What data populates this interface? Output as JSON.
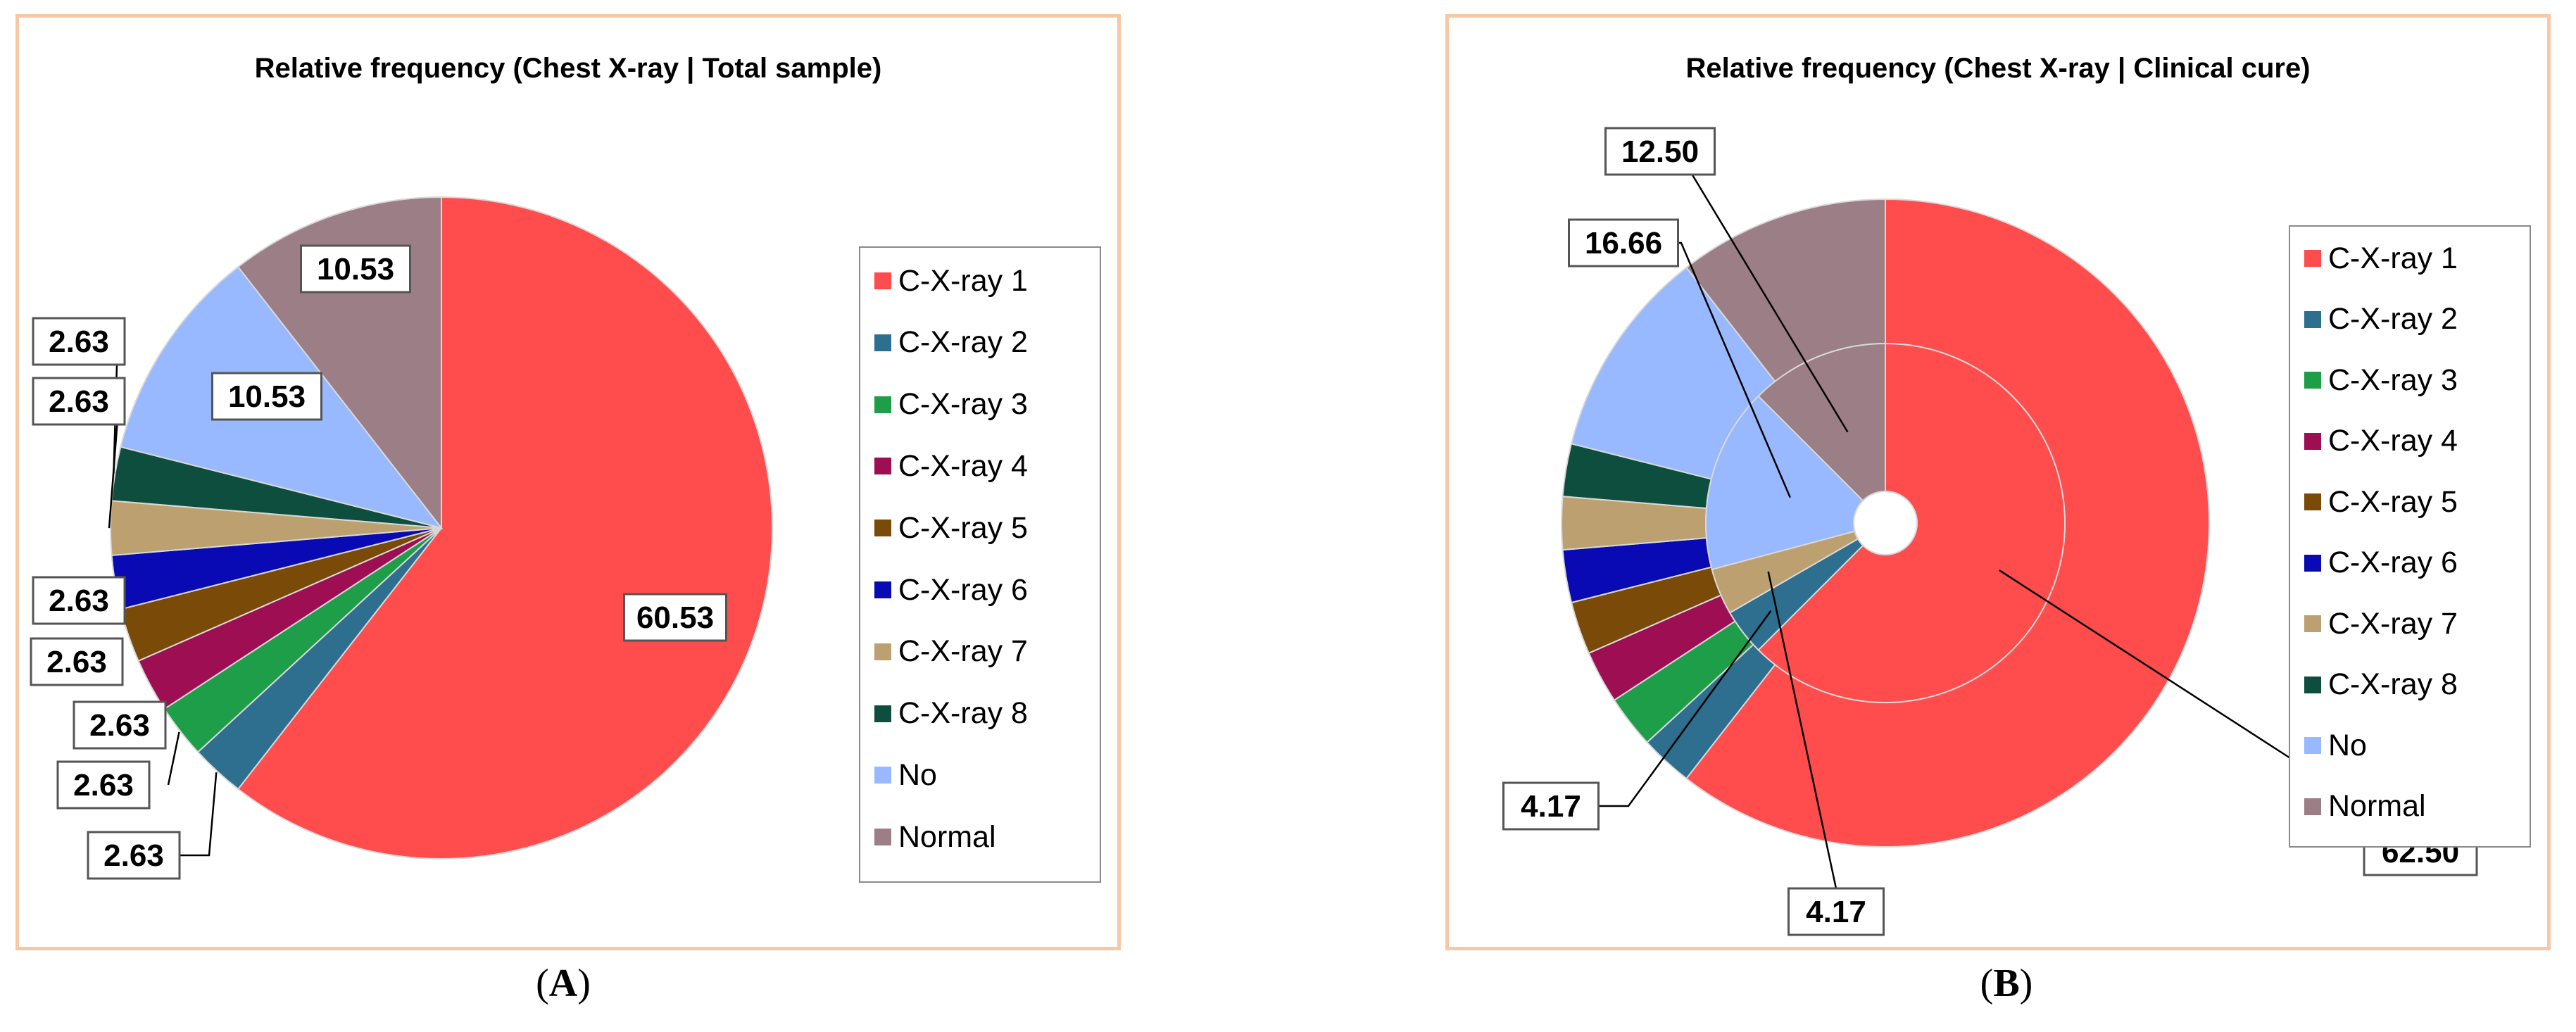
{
  "chart_data": [
    {
      "type": "pie",
      "id": "A",
      "title": "Relative frequency (Chest X-ray |  Total sample)",
      "legend_position": "right",
      "categories": [
        "C-X-ray 1",
        "C-X-ray 2",
        "C-X-ray 3",
        "C-X-ray 4",
        "C-X-ray 5",
        "C-X-ray 6",
        "C-X-ray 7",
        "C-X-ray 8",
        "No",
        "Normal"
      ],
      "colors": [
        "#FF4C4C",
        "#2E6E8E",
        "#1E9E48",
        "#9E0E52",
        "#7A4A08",
        "#0A0AB4",
        "#BDA070",
        "#0E4E3E",
        "#98B8FF",
        "#9C7E86"
      ],
      "values": [
        60.53,
        2.63,
        2.63,
        2.63,
        2.63,
        2.63,
        2.63,
        2.63,
        10.53,
        10.53
      ],
      "data_labels": [
        "60.53",
        "2.63",
        "2.63",
        "2.63",
        "2.63",
        "2.63",
        "2.63",
        "2.63",
        "10.53",
        "10.53"
      ]
    },
    {
      "type": "pie",
      "id": "B",
      "title": "Relative frequency (Chest X-ray | Clinical cure)",
      "legend_position": "right",
      "categories": [
        "C-X-ray 1",
        "C-X-ray 2",
        "C-X-ray 3",
        "C-X-ray 4",
        "C-X-ray 5",
        "C-X-ray 6",
        "C-X-ray 7",
        "C-X-ray 8",
        "No",
        "Normal"
      ],
      "colors": [
        "#FF4C4C",
        "#2E6E8E",
        "#1E9E48",
        "#9E0E52",
        "#7A4A08",
        "#0A0AB4",
        "#BDA070",
        "#0E4E3E",
        "#98B8FF",
        "#9C7E86"
      ],
      "outer_values": [
        60.53,
        2.63,
        2.63,
        2.63,
        2.63,
        2.63,
        2.63,
        2.63,
        10.53,
        10.53
      ],
      "inner_values": [
        62.5,
        4.17,
        0,
        0,
        0,
        0,
        4.17,
        0,
        16.66,
        12.5
      ],
      "data_labels": [
        {
          "category": "C-X-ray 1",
          "label": "62.50"
        },
        {
          "category": "C-X-ray 2",
          "label": "4.17"
        },
        {
          "category": "C-X-ray 7",
          "label": "4.17"
        },
        {
          "category": "No",
          "label": "16.66"
        },
        {
          "category": "Normal",
          "label": "12.50"
        }
      ]
    }
  ],
  "captions": [
    "A",
    "B"
  ]
}
